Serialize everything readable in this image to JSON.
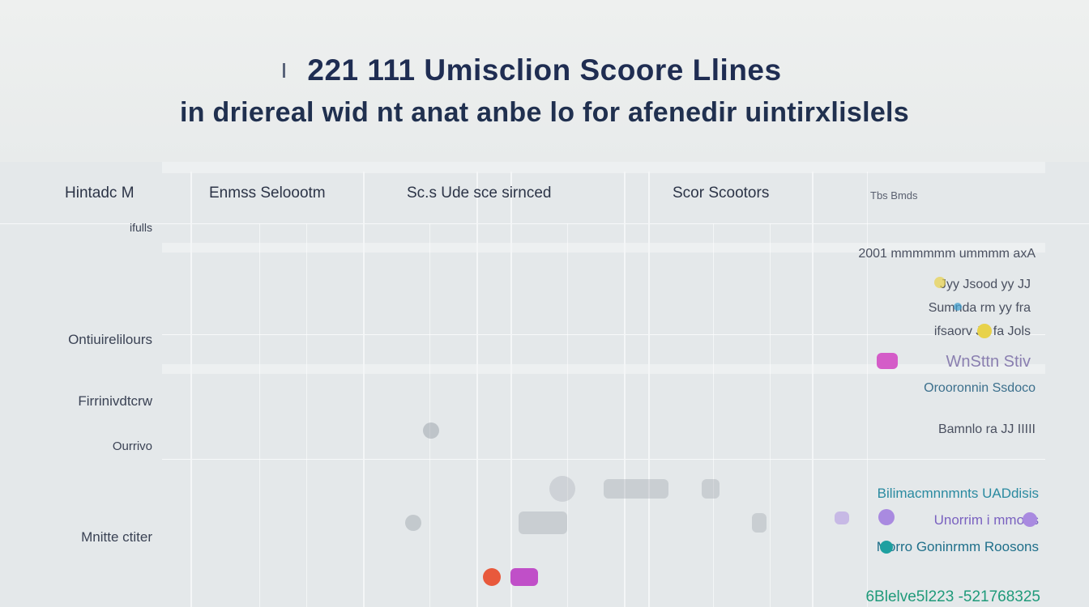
{
  "title": "221 111 Umisclion Scoore Llines",
  "subtitle": "in driereal wid nt anat anbe lo for afenedir uintirxlislels",
  "columns": [
    {
      "label": "Hintadc M"
    },
    {
      "label": "Enmss Seloootm"
    },
    {
      "label": "Sc.s Ude sce sirnced"
    },
    {
      "label": "Scor Scootors"
    },
    {
      "label": "Tbs Bmds"
    }
  ],
  "row_labels": [
    {
      "label": "ifulls"
    },
    {
      "label": "Ontiuirelilours"
    },
    {
      "label": "Firrinivdtcrw"
    },
    {
      "label": "Ourrivo"
    },
    {
      "label": "Mnitte ctiter"
    }
  ],
  "right_column": [
    {
      "text": "2001 mmmmmm ummmm axA",
      "color": "#4a5060"
    },
    {
      "text": "Jyy Jsood yy JJ",
      "color": "#4a5060"
    },
    {
      "text": "Sumnda rm yy fra",
      "color": "#4a5060"
    },
    {
      "text": "ifsaorv Jo fa Jols",
      "color": "#4a5060"
    },
    {
      "text": "WnSttn Stiv",
      "color": "#8a7fb0"
    },
    {
      "text": "Orooronnin Ssdoco",
      "color": "#3b6f8c"
    },
    {
      "text": "Bamnlo ra JJ IIIII",
      "color": "#4a5060"
    },
    {
      "text": "Bilimacmnnmnts UADdisis",
      "color": "#2a8aa0"
    },
    {
      "text": "Unorrim i mmons",
      "color": "#7a62c0"
    },
    {
      "text": "Morro Goninrmm Roosons",
      "color": "#1f6f8a"
    },
    {
      "text": "6Blelve5l223 -521768325",
      "color": "#1f9a7a"
    }
  ],
  "colors": {
    "title": "#1f2d52",
    "dot_orange": "#e8593c",
    "dot_purple": "#c04fc8",
    "dot_yellow": "#e8d24a",
    "dot_pink": "#d45cc8",
    "dot_teal": "#1ea0a0",
    "dot_lavender": "#a98ae0"
  }
}
